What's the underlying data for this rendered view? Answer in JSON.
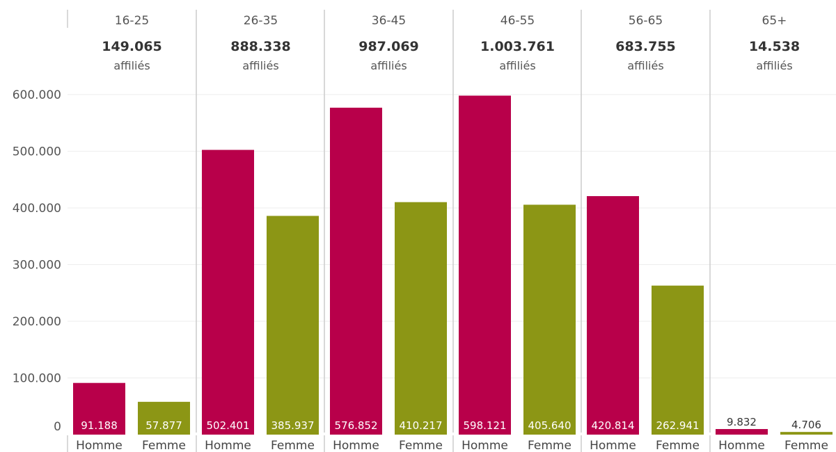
{
  "chart_data": {
    "type": "bar",
    "ylim": [
      0,
      600000
    ],
    "y_ticks": [
      "0",
      "100.000",
      "200.000",
      "300.000",
      "400.000",
      "500.000",
      "600.000"
    ],
    "y_tick_values": [
      0,
      100000,
      200000,
      300000,
      400000,
      500000,
      600000
    ],
    "unit_label": "affiliés",
    "categories": [
      "Homme",
      "Femme"
    ],
    "colors": {
      "Homme": "#b8004a",
      "Femme": "#8c9615"
    },
    "groups": [
      {
        "age": "16-25",
        "total": "149.065",
        "values": [
          91188,
          57877
        ],
        "labels": [
          "91.188",
          "57.877"
        ]
      },
      {
        "age": "26-35",
        "total": "888.338",
        "values": [
          502401,
          385937
        ],
        "labels": [
          "502.401",
          "385.937"
        ]
      },
      {
        "age": "36-45",
        "total": "987.069",
        "values": [
          576852,
          410217
        ],
        "labels": [
          "576.852",
          "410.217"
        ]
      },
      {
        "age": "46-55",
        "total": "1.003.761",
        "values": [
          598121,
          405640
        ],
        "labels": [
          "598.121",
          "405.640"
        ]
      },
      {
        "age": "56-65",
        "total": "683.755",
        "values": [
          420814,
          262941
        ],
        "labels": [
          "420.814",
          "262.941"
        ]
      },
      {
        "age": "65+",
        "total": "14.538",
        "values": [
          9832,
          4706
        ],
        "labels": [
          "9.832",
          "4.706"
        ]
      }
    ],
    "grid": true,
    "legend": "none"
  }
}
